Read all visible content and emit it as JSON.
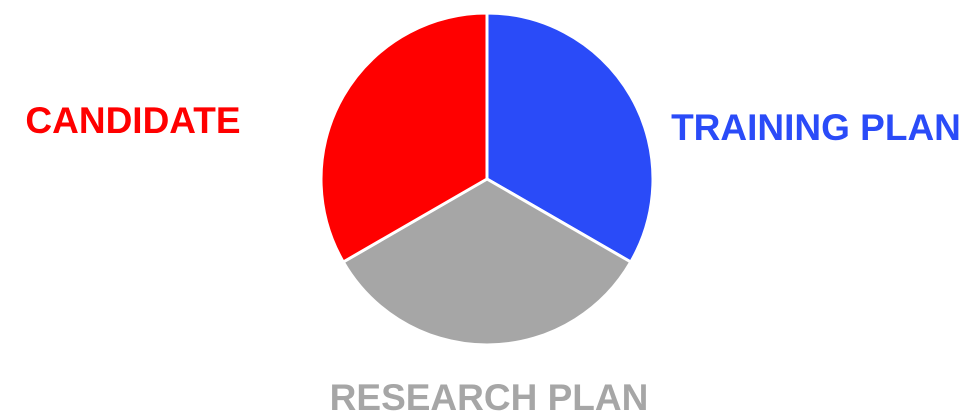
{
  "chart_data": {
    "type": "pie",
    "slices": [
      {
        "label": "TRAINING PLAN",
        "value": 1,
        "color": "#2a4bf8"
      },
      {
        "label": "RESEARCH PLAN",
        "value": 1,
        "color": "#a6a6a6"
      },
      {
        "label": "CANDIDATE",
        "value": 1,
        "color": "#ff0000"
      }
    ],
    "start_angle_deg": 0,
    "legend": "none",
    "slice_border_color": "#ffffff"
  }
}
